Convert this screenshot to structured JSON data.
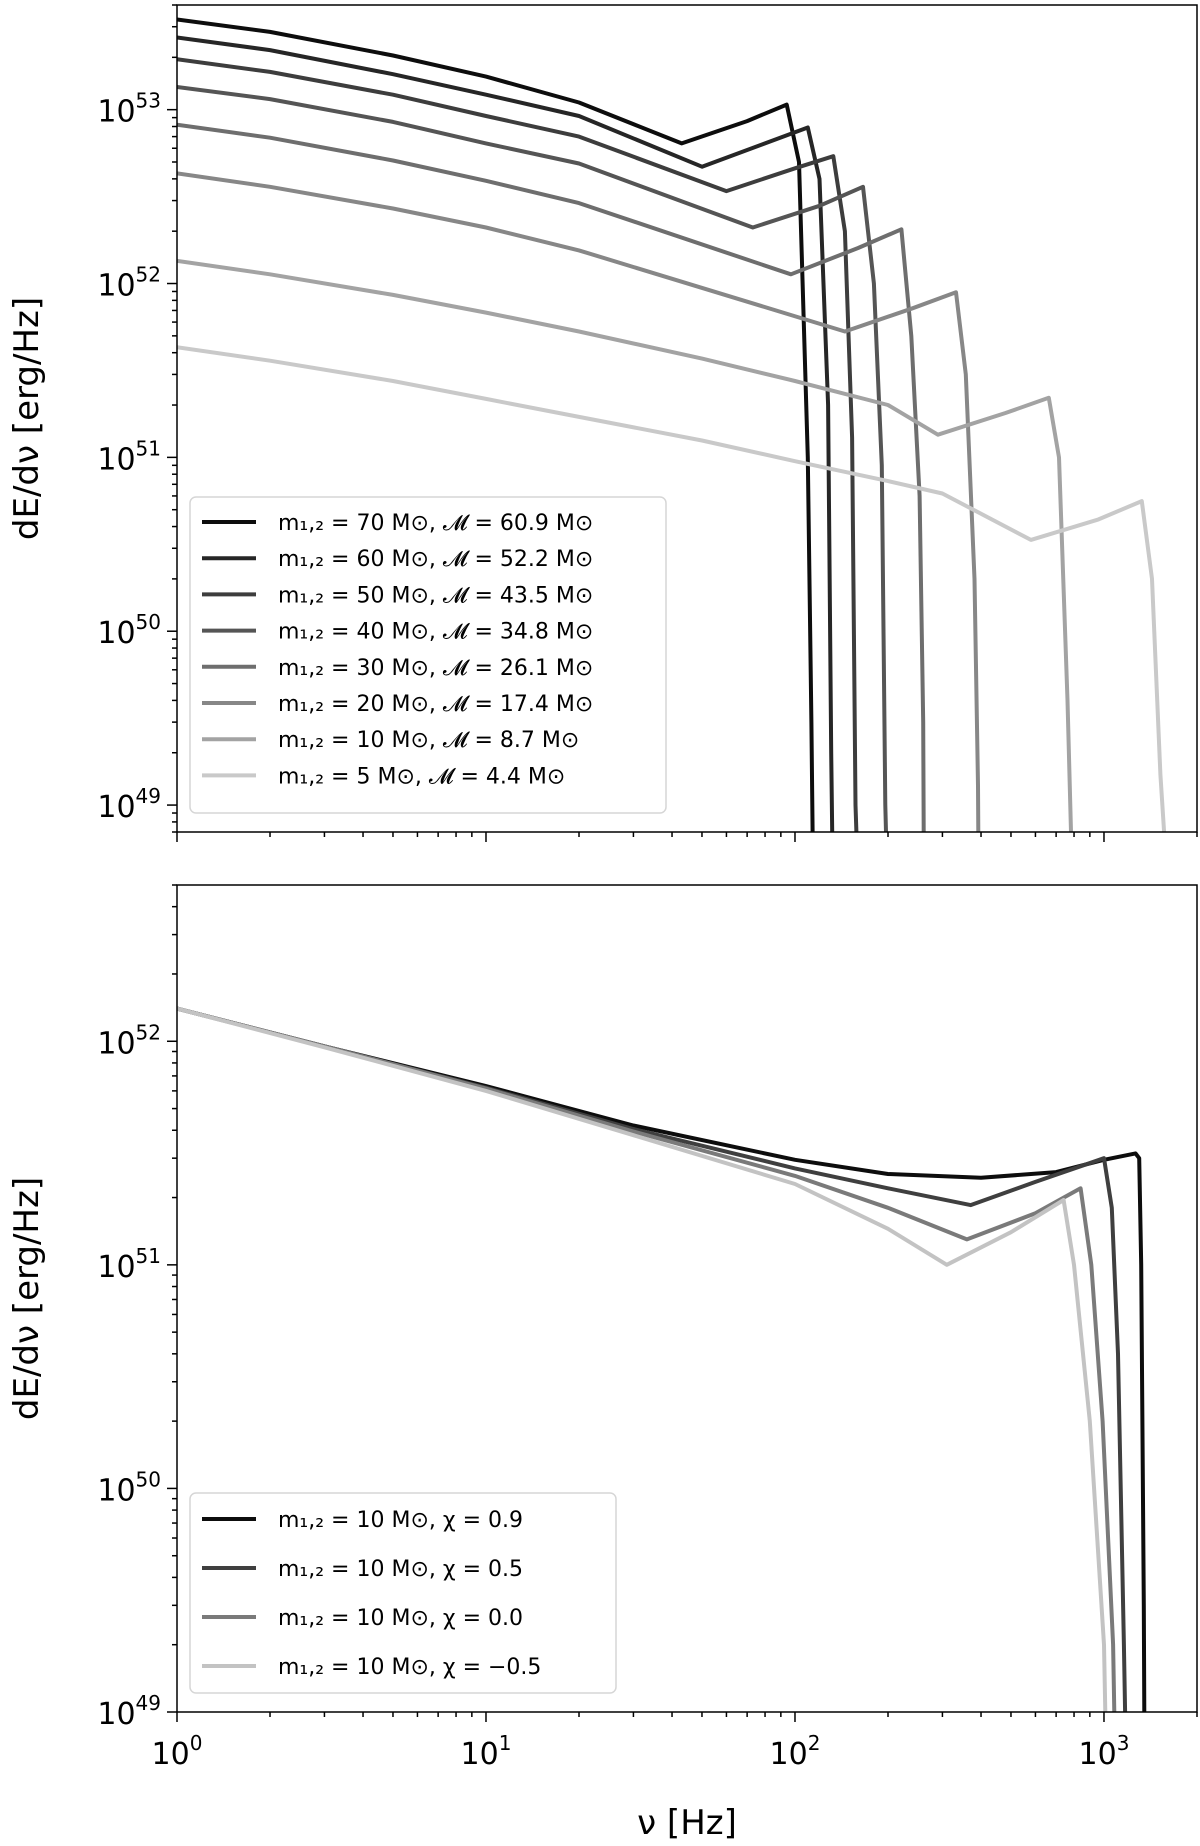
{
  "chart_data": [
    {
      "type": "line",
      "xscale": "log",
      "yscale": "log",
      "xlim": [
        1,
        2000
      ],
      "ylim": [
        7e+48,
        4e+53
      ],
      "xlabel": "",
      "ylabel": "dE/dν [erg/Hz]",
      "xticks": [
        {
          "value": 1,
          "base": "10",
          "exp": "0"
        },
        {
          "value": 10,
          "base": "10",
          "exp": "1"
        },
        {
          "value": 100,
          "base": "10",
          "exp": "2"
        },
        {
          "value": 1000,
          "base": "10",
          "exp": "3"
        }
      ],
      "yticks": [
        {
          "value": 1e+49,
          "base": "10",
          "exp": "49"
        },
        {
          "value": 1e+50,
          "base": "10",
          "exp": "50"
        },
        {
          "value": 1e+51,
          "base": "10",
          "exp": "51"
        },
        {
          "value": 1e+52,
          "base": "10",
          "exp": "52"
        },
        {
          "value": 1e+53,
          "base": "10",
          "exp": "53"
        }
      ],
      "show_xtick_labels": false,
      "grid": false,
      "legend_position": "lower-left",
      "series": [
        {
          "name": "m₁,₂ = 70 M⊙,  𝓜 = 60.9 M⊙",
          "color": "#0d0d0d",
          "x": [
            1,
            2,
            5,
            10,
            20,
            43,
            70,
            94,
            103,
            110,
            113,
            114
          ],
          "y": [
            3.3e+53,
            2.8e+53,
            2.05e+53,
            1.55e+53,
            1.1e+53,
            6.4e+52,
            8.6e+52,
            1.07e+53,
            5e+52,
            1e+51,
            3e+49,
            7e+48
          ]
        },
        {
          "name": "m₁,₂ = 60 M⊙,  𝓜 = 52.2 M⊙",
          "color": "#262626",
          "x": [
            1,
            2,
            5,
            10,
            20,
            50,
            80,
            110,
            120,
            128,
            131,
            132
          ],
          "y": [
            2.6e+53,
            2.2e+53,
            1.6e+53,
            1.22e+53,
            9.2e+52,
            4.7e+52,
            6.4e+52,
            7.9e+52,
            4e+52,
            2e+51,
            2e+49,
            7e+48
          ]
        },
        {
          "name": "m₁,₂ = 50 M⊙,  𝓜 = 43.5 M⊙",
          "color": "#3d3d3d",
          "x": [
            1,
            2,
            5,
            10,
            20,
            60,
            100,
            133,
            145,
            153,
            157,
            158
          ],
          "y": [
            1.95e+53,
            1.65e+53,
            1.22e+53,
            9.2e+52,
            7e+52,
            3.4e+52,
            4.6e+52,
            5.4e+52,
            2e+52,
            1.3e+51,
            1e+49,
            7e+48
          ]
        },
        {
          "name": "m₁,₂ = 40 M⊙,  𝓜 = 34.8 M⊙",
          "color": "#555555",
          "x": [
            1,
            2,
            5,
            10,
            20,
            73,
            120,
            166,
            180,
            191,
            196,
            197
          ],
          "y": [
            1.35e+53,
            1.15e+53,
            8.5e+52,
            6.4e+52,
            4.9e+52,
            2.1e+52,
            2.8e+52,
            3.6e+52,
            1e+52,
            9e+50,
            1e+49,
            7e+48
          ]
        },
        {
          "name": "m₁,₂ = 30 M⊙,  𝓜 = 26.1 M⊙",
          "color": "#6e6e6e",
          "x": [
            1,
            2,
            5,
            10,
            20,
            97,
            160,
            221,
            238,
            253,
            260,
            261
          ],
          "y": [
            8.2e+52,
            6.9e+52,
            5.1e+52,
            3.9e+52,
            2.9e+52,
            1.13e+52,
            1.6e+52,
            2.05e+52,
            5e+51,
            6e+50,
            3e+49,
            7e+48
          ]
        },
        {
          "name": "m₁,₂ = 20 M⊙,  𝓜 = 17.4 M⊙",
          "color": "#878787",
          "x": [
            1,
            2,
            5,
            10,
            20,
            145,
            240,
            332,
            357,
            381,
            391,
            392
          ],
          "y": [
            4.3e+52,
            3.6e+52,
            2.7e+52,
            2.1e+52,
            1.55e+52,
            5.3e+51,
            7.2e+51,
            8.9e+51,
            3e+51,
            2e+50,
            1.3e+49,
            7e+48
          ]
        },
        {
          "name": "m₁,₂ = 10 M⊙,  𝓜 = 8.7 M⊙",
          "color": "#a3a3a3",
          "x": [
            1,
            2,
            5,
            10,
            20,
            50,
            100,
            200,
            290,
            480,
            663,
            715,
            762,
            782,
            783
          ],
          "y": [
            1.35e+52,
            1.13e+52,
            8.6e+51,
            6.8e+51,
            5.3e+51,
            3.7e+51,
            2.75e+51,
            2e+51,
            1.35e+51,
            1.8e+51,
            2.2e+51,
            1e+51,
            4e+49,
            7e+48,
            7e+48
          ]
        },
        {
          "name": "m₁,₂ = 5 M⊙,  𝓜 = 4.4 M⊙",
          "color": "#c9c9c9",
          "x": [
            1,
            2,
            5,
            10,
            20,
            50,
            100,
            200,
            300,
            580,
            960,
            1326,
            1430,
            1523,
            1565,
            1566
          ],
          "y": [
            4.3e+51,
            3.6e+51,
            2.75e+51,
            2.17e+51,
            1.71e+51,
            1.25e+51,
            9.5e+50,
            7.3e+50,
            6.2e+50,
            3.35e+50,
            4.4e+50,
            5.6e+50,
            2e+50,
            1.5e+49,
            7e+48,
            7e+48
          ]
        }
      ]
    },
    {
      "type": "line",
      "xscale": "log",
      "yscale": "log",
      "xlim": [
        1,
        2000
      ],
      "ylim": [
        1e+49,
        5e+52
      ],
      "xlabel": "ν [Hz]",
      "ylabel": "dE/dν [erg/Hz]",
      "xticks": [
        {
          "value": 1,
          "base": "10",
          "exp": "0"
        },
        {
          "value": 10,
          "base": "10",
          "exp": "1"
        },
        {
          "value": 100,
          "base": "10",
          "exp": "2"
        },
        {
          "value": 1000,
          "base": "10",
          "exp": "3"
        }
      ],
      "yticks": [
        {
          "value": 1e+49,
          "base": "10",
          "exp": "49"
        },
        {
          "value": 1e+50,
          "base": "10",
          "exp": "50"
        },
        {
          "value": 1e+51,
          "base": "10",
          "exp": "51"
        },
        {
          "value": 1e+52,
          "base": "10",
          "exp": "52"
        }
      ],
      "show_xtick_labels": true,
      "grid": false,
      "legend_position": "lower-left",
      "series": [
        {
          "name": "m₁,₂ = 10 M⊙,  χ = 0.9",
          "color": "#0d0d0d",
          "x": [
            1,
            3,
            10,
            30,
            100,
            200,
            400,
            700,
            1000,
            1265,
            1300,
            1320,
            1345,
            1350
          ],
          "y": [
            1.4e+52,
            9.5e+51,
            6.3e+51,
            4.2e+51,
            2.95e+51,
            2.55e+51,
            2.45e+51,
            2.6e+51,
            2.95e+51,
            3.15e+51,
            3e+51,
            1e+51,
            3e+49,
            1e+49
          ]
        },
        {
          "name": "m₁,₂ = 10 M⊙,  χ = 0.5",
          "color": "#3f3f3f",
          "x": [
            1,
            3,
            10,
            30,
            100,
            200,
            370,
            600,
            1000,
            1060,
            1110,
            1160,
            1170
          ],
          "y": [
            1.4e+52,
            9.5e+51,
            6.2e+51,
            4.05e+51,
            2.7e+51,
            2.2e+51,
            1.85e+51,
            2.35e+51,
            3e+51,
            1.8e+51,
            4e+50,
            2e+49,
            1e+49
          ]
        },
        {
          "name": "m₁,₂ = 10 M⊙,  χ = 0.0",
          "color": "#7a7a7a",
          "x": [
            1,
            3,
            10,
            30,
            100,
            200,
            360,
            600,
            840,
            910,
            990,
            1070,
            1080
          ],
          "y": [
            1.4e+52,
            9.5e+51,
            6.15e+51,
            3.95e+51,
            2.5e+51,
            1.8e+51,
            1.3e+51,
            1.7e+51,
            2.2e+51,
            1e+51,
            2e+50,
            2e+49,
            1e+49
          ]
        },
        {
          "name": "m₁,₂ = 10 M⊙,  χ = −0.5",
          "color": "#c3c3c3",
          "x": [
            1,
            3,
            10,
            30,
            100,
            200,
            310,
            500,
            740,
            800,
            900,
            1000,
            1010
          ],
          "y": [
            1.4e+52,
            9.4e+51,
            6e+51,
            3.8e+51,
            2.3e+51,
            1.45e+51,
            1e+51,
            1.4e+51,
            1.95e+51,
            1e+51,
            2e+50,
            2e+49,
            1e+49
          ]
        }
      ]
    }
  ]
}
